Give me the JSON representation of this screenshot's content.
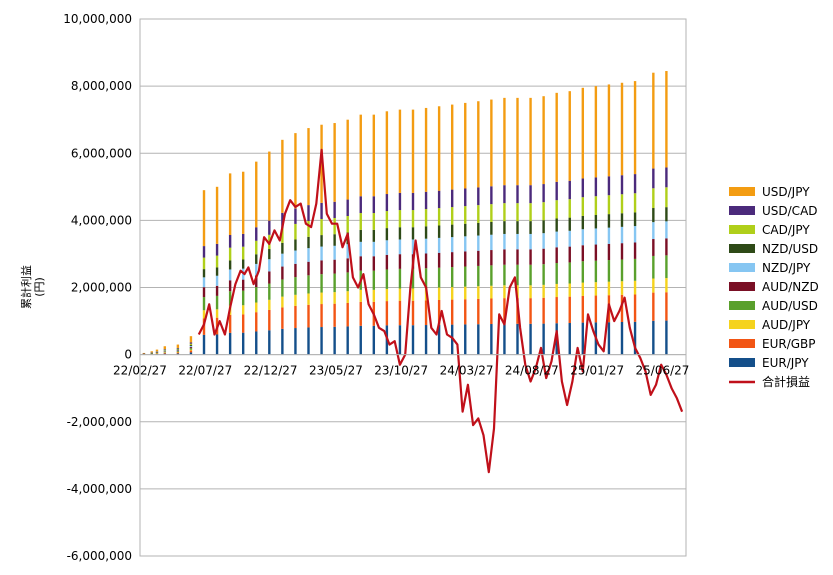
{
  "chart_data": {
    "type": "bar",
    "ylabel": [
      "累計利益",
      "(円)"
    ],
    "ylim": [
      -6000000,
      10000000
    ],
    "yticks": [
      -6000000,
      -4000000,
      -2000000,
      0,
      2000000,
      4000000,
      6000000,
      8000000,
      10000000
    ],
    "ytick_labels": [
      "-6,000,000",
      "-4,000,000",
      "-2,000,000",
      "0",
      "2,000,000",
      "4,000,000",
      "6,000,000",
      "8,000,000",
      "10,000,000"
    ],
    "xtick_labels": [
      "22/02/27",
      "22/07/27",
      "22/12/27",
      "23/05/27",
      "23/10/27",
      "24/03/27",
      "24/08/27",
      "25/01/27",
      "25/06/27"
    ],
    "grid": true,
    "legend_position": "right",
    "series": [
      {
        "name": "USD/JPY",
        "color": "#f39c12"
      },
      {
        "name": "USD/CAD",
        "color": "#4b2a7b"
      },
      {
        "name": "CAD/JPY",
        "color": "#b0cf1a"
      },
      {
        "name": "NZD/USD",
        "color": "#2e4a17"
      },
      {
        "name": "NZD/JPY",
        "color": "#86c6f2"
      },
      {
        "name": "AUD/NZD",
        "color": "#7a0f25"
      },
      {
        "name": "AUD/USD",
        "color": "#5aa02c"
      },
      {
        "name": "AUD/JPY",
        "color": "#f5d31d"
      },
      {
        "name": "EUR/GBP",
        "color": "#f25514"
      },
      {
        "name": "EUR/JPY",
        "color": "#144f8a"
      }
    ],
    "line_series": {
      "name": "合計損益",
      "color": "#c0101a"
    },
    "monthly_totals": {
      "x": [
        0.3,
        0.9,
        1.3,
        1.9,
        2.9,
        3.9,
        4.9,
        5.9,
        6.9,
        7.9,
        8.9,
        9.9,
        10.9,
        11.9,
        12.9,
        13.9,
        14.9,
        15.9,
        16.9,
        17.9,
        18.9,
        19.9,
        20.9,
        21.9,
        22.9,
        23.9,
        24.9,
        25.9,
        26.9,
        27.9,
        28.9,
        29.9,
        30.9,
        31.9,
        32.9,
        33.9,
        34.9,
        35.9,
        36.9,
        37.9,
        39.3,
        40.3
      ],
      "values": [
        50000,
        100000,
        150000,
        250000,
        300000,
        550000,
        4900000,
        5000000,
        5400000,
        5450000,
        5750000,
        6050000,
        6400000,
        6600000,
        6750000,
        6850000,
        6900000,
        7000000,
        7150000,
        7150000,
        7250000,
        7300000,
        7300000,
        7350000,
        7400000,
        7450000,
        7500000,
        7550000,
        7600000,
        7650000,
        7650000,
        7650000,
        7700000,
        7800000,
        7850000,
        7950000,
        8000000,
        8050000,
        8100000,
        8150000,
        8400000,
        8450000
      ],
      "shares": [
        0.34,
        0.07,
        0.07,
        0.05,
        0.06,
        0.06,
        0.08,
        0.05,
        0.1,
        0.12
      ]
    },
    "cumulative_pnl": {
      "x": [
        4.5,
        4.9,
        5.3,
        5.7,
        6.1,
        6.5,
        6.9,
        7.3,
        7.7,
        8.0,
        8.3,
        8.7,
        9.1,
        9.5,
        9.9,
        10.3,
        10.7,
        11.1,
        11.5,
        11.9,
        12.3,
        12.7,
        13.1,
        13.5,
        13.9,
        14.3,
        14.7,
        15.1,
        15.5,
        15.9,
        16.3,
        16.7,
        17.1,
        17.5,
        17.9,
        18.3,
        18.7,
        19.1,
        19.5,
        19.9,
        20.3,
        20.7,
        21.1,
        21.5,
        21.9,
        22.3,
        22.7,
        23.1,
        23.5,
        23.9,
        24.3,
        24.7,
        25.1,
        25.5,
        25.9,
        26.3,
        26.7,
        27.1,
        27.5,
        27.9,
        28.3,
        28.7,
        29.1,
        29.5,
        29.9,
        30.3,
        30.7,
        31.1,
        31.5,
        31.9,
        32.3,
        32.7,
        33.1,
        33.5,
        33.9,
        34.3,
        34.7,
        35.1,
        35.5,
        35.9,
        36.3,
        36.7,
        37.1,
        37.5,
        37.9,
        38.3,
        38.7,
        39.1,
        39.5,
        39.9,
        40.3,
        40.7,
        41.1,
        41.5
      ],
      "values": [
        600000,
        900000,
        1500000,
        600000,
        1000000,
        600000,
        1400000,
        2100000,
        2500000,
        2400000,
        2600000,
        2100000,
        2500000,
        3500000,
        3300000,
        3700000,
        3400000,
        4200000,
        4600000,
        4400000,
        4500000,
        3900000,
        3800000,
        4500000,
        6100000,
        4200000,
        3900000,
        3900000,
        3200000,
        3600000,
        2300000,
        2000000,
        2400000,
        1500000,
        1200000,
        800000,
        700000,
        300000,
        400000,
        -300000,
        0,
        2000000,
        3400000,
        2300000,
        2000000,
        800000,
        600000,
        1300000,
        600000,
        500000,
        300000,
        -1700000,
        -900000,
        -2100000,
        -1900000,
        -2400000,
        -3500000,
        -2200000,
        1200000,
        900000,
        2000000,
        2300000,
        800000,
        -300000,
        -800000,
        -400000,
        200000,
        -700000,
        -200000,
        700000,
        -800000,
        -1500000,
        -800000,
        200000,
        -500000,
        1200000,
        700000,
        300000,
        100000,
        1500000,
        1000000,
        1300000,
        1700000,
        800000,
        200000,
        -100000,
        -500000,
        -1200000,
        -900000,
        -300000,
        -600000,
        -1000000,
        -1300000,
        -1700000
      ]
    }
  }
}
